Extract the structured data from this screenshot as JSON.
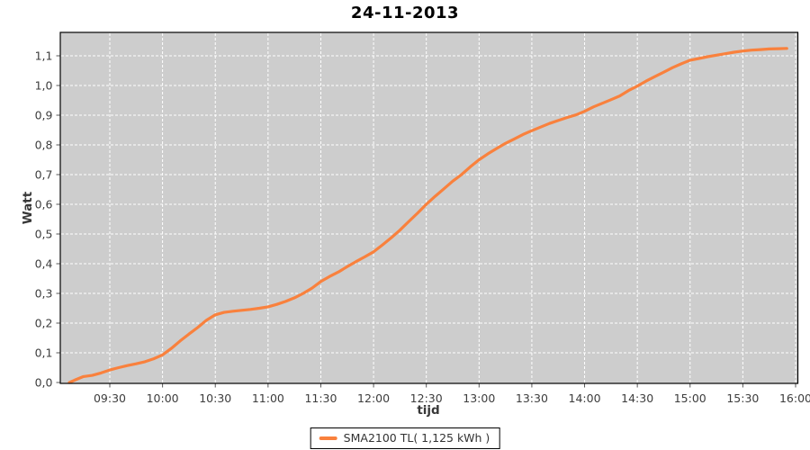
{
  "chart_data": {
    "type": "line",
    "title": "24-11-2013",
    "xlabel": "tijd",
    "ylabel": "Watt",
    "x_ticks": [
      "09:30",
      "10:00",
      "10:30",
      "11:00",
      "11:30",
      "12:00",
      "12:30",
      "13:00",
      "13:30",
      "14:00",
      "14:30",
      "15:00",
      "15:30",
      "16:00"
    ],
    "y_ticks": [
      "0,0",
      "0,1",
      "0,2",
      "0,3",
      "0,4",
      "0,5",
      "0,6",
      "0,7",
      "0,8",
      "0,9",
      "1,0",
      "1,1"
    ],
    "x_range": [
      "09:02",
      "16:01"
    ],
    "ylim": [
      0,
      1.177
    ],
    "grid": "white-dashed",
    "legend_position": "bottom-center",
    "series": [
      {
        "name": "SMA2100 TL( 1,125 kWh )",
        "color": "#f9813d",
        "points": [
          [
            "09:07",
            0.0
          ],
          [
            "09:10",
            0.008
          ],
          [
            "09:15",
            0.02
          ],
          [
            "09:20",
            0.024
          ],
          [
            "09:25",
            0.032
          ],
          [
            "09:30",
            0.042
          ],
          [
            "09:35",
            0.05
          ],
          [
            "09:40",
            0.057
          ],
          [
            "09:45",
            0.063
          ],
          [
            "09:50",
            0.07
          ],
          [
            "09:55",
            0.08
          ],
          [
            "10:00",
            0.093
          ],
          [
            "10:05",
            0.115
          ],
          [
            "10:10",
            0.14
          ],
          [
            "10:15",
            0.163
          ],
          [
            "10:20",
            0.185
          ],
          [
            "10:25",
            0.21
          ],
          [
            "10:30",
            0.228
          ],
          [
            "10:35",
            0.236
          ],
          [
            "10:40",
            0.24
          ],
          [
            "10:45",
            0.243
          ],
          [
            "10:50",
            0.246
          ],
          [
            "10:55",
            0.25
          ],
          [
            "11:00",
            0.255
          ],
          [
            "11:05",
            0.263
          ],
          [
            "11:10",
            0.273
          ],
          [
            "11:15",
            0.285
          ],
          [
            "11:20",
            0.3
          ],
          [
            "11:25",
            0.318
          ],
          [
            "11:30",
            0.34
          ],
          [
            "11:35",
            0.357
          ],
          [
            "11:40",
            0.372
          ],
          [
            "11:45",
            0.39
          ],
          [
            "11:50",
            0.407
          ],
          [
            "11:55",
            0.423
          ],
          [
            "12:00",
            0.44
          ],
          [
            "12:05",
            0.463
          ],
          [
            "12:10",
            0.487
          ],
          [
            "12:15",
            0.513
          ],
          [
            "12:20",
            0.542
          ],
          [
            "12:25",
            0.57
          ],
          [
            "12:30",
            0.6
          ],
          [
            "12:35",
            0.627
          ],
          [
            "12:40",
            0.652
          ],
          [
            "12:45",
            0.678
          ],
          [
            "12:50",
            0.7
          ],
          [
            "12:55",
            0.726
          ],
          [
            "13:00",
            0.75
          ],
          [
            "13:05",
            0.77
          ],
          [
            "13:10",
            0.788
          ],
          [
            "13:15",
            0.805
          ],
          [
            "13:20",
            0.82
          ],
          [
            "13:25",
            0.835
          ],
          [
            "13:30",
            0.848
          ],
          [
            "13:35",
            0.86
          ],
          [
            "13:40",
            0.872
          ],
          [
            "13:45",
            0.882
          ],
          [
            "13:50",
            0.892
          ],
          [
            "13:55",
            0.901
          ],
          [
            "14:00",
            0.913
          ],
          [
            "14:05",
            0.928
          ],
          [
            "14:10",
            0.94
          ],
          [
            "14:15",
            0.952
          ],
          [
            "14:20",
            0.965
          ],
          [
            "14:25",
            0.983
          ],
          [
            "14:30",
            0.998
          ],
          [
            "14:35",
            1.015
          ],
          [
            "14:40",
            1.03
          ],
          [
            "14:45",
            1.045
          ],
          [
            "14:50",
            1.06
          ],
          [
            "14:55",
            1.073
          ],
          [
            "15:00",
            1.085
          ],
          [
            "15:05",
            1.091
          ],
          [
            "15:10",
            1.097
          ],
          [
            "15:15",
            1.102
          ],
          [
            "15:20",
            1.107
          ],
          [
            "15:25",
            1.112
          ],
          [
            "15:30",
            1.116
          ],
          [
            "15:35",
            1.119
          ],
          [
            "15:40",
            1.121
          ],
          [
            "15:45",
            1.123
          ],
          [
            "15:50",
            1.124
          ],
          [
            "15:55",
            1.125
          ]
        ]
      }
    ],
    "colors": {
      "plot_background": "#cdcdcd",
      "gridline": "#ffffff",
      "plot_border": "#000000",
      "tick_text": "#3d3d3d",
      "tick_mark": "#565656",
      "series_orange": "#f9813d"
    }
  }
}
